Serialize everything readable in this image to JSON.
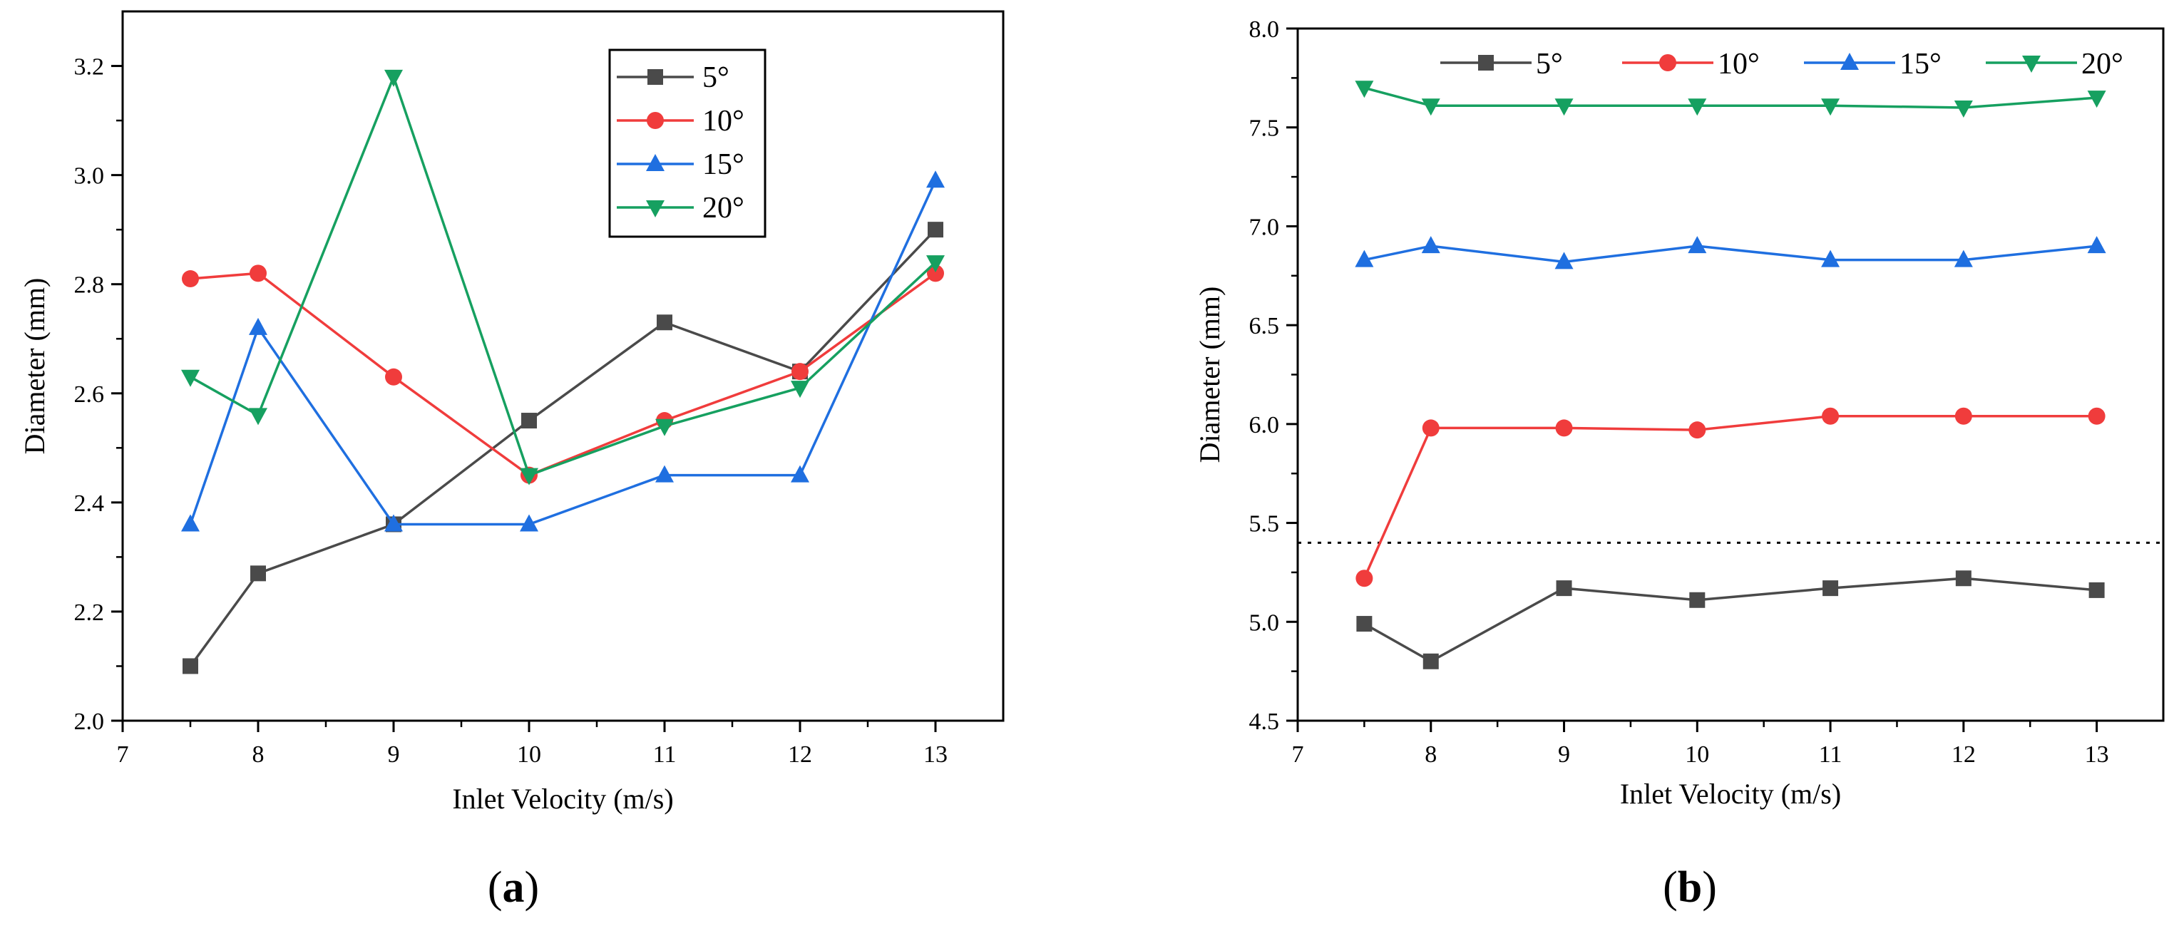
{
  "colors": {
    "series": [
      "#4a4a4a",
      "#f03c3c",
      "#1f6fe0",
      "#16a060"
    ],
    "axis": "#000000"
  },
  "chart_data": [
    {
      "type": "line",
      "panel_label": "(a)",
      "panel_label_prefix": "(",
      "panel_label_letter": "a",
      "panel_label_suffix": ")",
      "xlabel": "Inlet Velocity (m/s)",
      "ylabel": "Diameter (mm)",
      "xlim": [
        7,
        13.5
      ],
      "ylim": [
        2.0,
        3.3
      ],
      "xticks": [
        7,
        8,
        9,
        10,
        11,
        12,
        13
      ],
      "xtick_labels": [
        "7",
        "8",
        "9",
        "10",
        "11",
        "12",
        "13"
      ],
      "yticks": [
        2.0,
        2.2,
        2.4,
        2.6,
        2.8,
        3.0,
        3.2
      ],
      "ytick_labels": [
        "2.0",
        "2.2",
        "2.4",
        "2.6",
        "2.8",
        "3.0",
        "3.2"
      ],
      "grid": false,
      "legend": "top-right",
      "legend_layout": "vertical",
      "legend_box": true,
      "x": [
        7.5,
        8,
        9,
        10,
        11,
        12,
        13
      ],
      "series": [
        {
          "name": "5°",
          "marker": "square",
          "values": [
            2.1,
            2.27,
            2.36,
            2.55,
            2.73,
            2.64,
            2.9
          ]
        },
        {
          "name": "10°",
          "marker": "circle",
          "values": [
            2.81,
            2.82,
            2.63,
            2.45,
            2.55,
            2.64,
            2.82
          ]
        },
        {
          "name": "15°",
          "marker": "triangle-up",
          "values": [
            2.36,
            2.72,
            2.36,
            2.36,
            2.45,
            2.45,
            2.99
          ]
        },
        {
          "name": "20°",
          "marker": "triangle-down",
          "values": [
            2.63,
            2.56,
            3.18,
            2.45,
            2.54,
            2.61,
            2.84
          ]
        }
      ]
    },
    {
      "type": "line",
      "panel_label": "(b)",
      "panel_label_prefix": "(",
      "panel_label_letter": "b",
      "panel_label_suffix": ")",
      "xlabel": "Inlet Velocity (m/s)",
      "ylabel": "Diameter (mm)",
      "xlim": [
        7,
        13.5
      ],
      "ylim": [
        4.5,
        8.0
      ],
      "xticks": [
        7,
        8,
        9,
        10,
        11,
        12,
        13
      ],
      "xtick_labels": [
        "7",
        "8",
        "9",
        "10",
        "11",
        "12",
        "13"
      ],
      "yticks": [
        4.5,
        5.0,
        5.5,
        6.0,
        6.5,
        7.0,
        7.5,
        8.0
      ],
      "ytick_labels": [
        "4.5",
        "5.0",
        "5.5",
        "6.0",
        "6.5",
        "7.0",
        "7.5",
        "8.0"
      ],
      "grid": false,
      "legend": "top",
      "legend_layout": "horizontal",
      "legend_box": false,
      "reference_line": {
        "y": 5.4,
        "style": "dotted"
      },
      "x": [
        7.5,
        8,
        9,
        10,
        11,
        12,
        13
      ],
      "series": [
        {
          "name": "5°",
          "marker": "square",
          "values": [
            4.99,
            4.8,
            5.17,
            5.11,
            5.17,
            5.22,
            5.16
          ]
        },
        {
          "name": "10°",
          "marker": "circle",
          "values": [
            5.22,
            5.98,
            5.98,
            5.97,
            6.04,
            6.04,
            6.04
          ]
        },
        {
          "name": "15°",
          "marker": "triangle-up",
          "values": [
            6.83,
            6.9,
            6.82,
            6.9,
            6.83,
            6.83,
            6.9
          ]
        },
        {
          "name": "20°",
          "marker": "triangle-down",
          "values": [
            7.7,
            7.61,
            7.61,
            7.61,
            7.61,
            7.6,
            7.65
          ]
        }
      ]
    }
  ]
}
